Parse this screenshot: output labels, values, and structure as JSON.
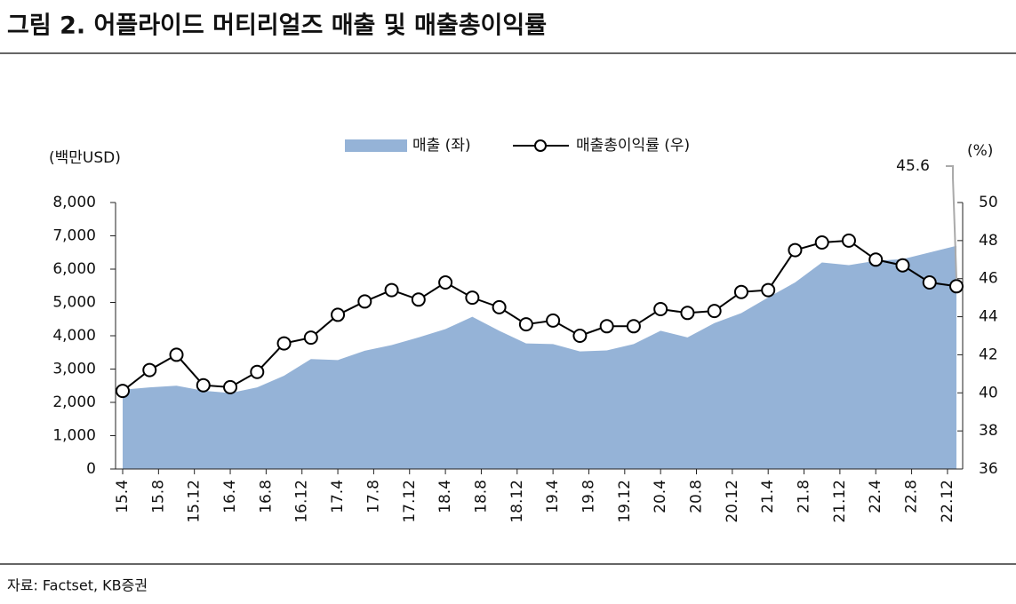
{
  "chart_data": {
    "type": "area_line",
    "title": "그림 2. 어플라이드 머티리얼즈 매출 및 매출총이익률",
    "source": "자료: Factset, KB증권",
    "y_label": "(백만USD)",
    "y2_label": "(%)",
    "annotation": "45.6",
    "x": [
      0,
      3,
      6,
      9,
      12,
      15,
      18,
      21,
      24,
      27,
      30,
      33,
      36,
      39,
      42,
      45,
      48,
      51,
      54,
      57,
      60,
      63,
      66,
      69,
      72,
      75,
      78,
      81,
      84,
      87,
      90,
      93
    ],
    "xlim": [
      0,
      93
    ],
    "xticks": [
      {
        "value": 0,
        "label": "15.4"
      },
      {
        "value": 4,
        "label": "15.8"
      },
      {
        "value": 8,
        "label": "15.12"
      },
      {
        "value": 12,
        "label": "16.4"
      },
      {
        "value": 16,
        "label": "16.8"
      },
      {
        "value": 20,
        "label": "16.12"
      },
      {
        "value": 24,
        "label": "17.4"
      },
      {
        "value": 28,
        "label": "17.8"
      },
      {
        "value": 32,
        "label": "17.12"
      },
      {
        "value": 36,
        "label": "18.4"
      },
      {
        "value": 40,
        "label": "18.8"
      },
      {
        "value": 44,
        "label": "18.12"
      },
      {
        "value": 48,
        "label": "19.4"
      },
      {
        "value": 52,
        "label": "19.8"
      },
      {
        "value": 56,
        "label": "19.12"
      },
      {
        "value": 60,
        "label": "20.4"
      },
      {
        "value": 64,
        "label": "20.8"
      },
      {
        "value": 68,
        "label": "20.12"
      },
      {
        "value": 72,
        "label": "21.4"
      },
      {
        "value": 76,
        "label": "21.8"
      },
      {
        "value": 80,
        "label": "21.12"
      },
      {
        "value": 84,
        "label": "22.4"
      },
      {
        "value": 88,
        "label": "22.8"
      },
      {
        "value": 92,
        "label": "22.12"
      }
    ],
    "ylim": [
      0,
      8000
    ],
    "yticks": [
      0,
      {
        "value": 1000,
        "label": "1,000"
      },
      {
        "value": 2000,
        "label": "2,000"
      },
      {
        "value": 3000,
        "label": "3,000"
      },
      {
        "value": 4000,
        "label": "4,000"
      },
      {
        "value": 5000,
        "label": "5,000"
      },
      {
        "value": 6000,
        "label": "6,000"
      },
      {
        "value": 7000,
        "label": "7,000"
      },
      {
        "value": 8000,
        "label": "8,000"
      }
    ],
    "y2lim": [
      36,
      50
    ],
    "y2ticks": [
      36,
      38,
      40,
      42,
      44,
      46,
      48,
      50
    ],
    "series": [
      {
        "name": "매출 (좌)",
        "color": "#95b3d7",
        "values": [
          2380,
          2450,
          2500,
          2350,
          2280,
          2450,
          2800,
          3300,
          3270,
          3550,
          3720,
          3950,
          4200,
          4570,
          4150,
          3770,
          3750,
          3530,
          3560,
          3750,
          4150,
          3950,
          4380,
          4680,
          5150,
          5600,
          6200,
          6120,
          6250,
          6300,
          6500,
          6700
        ]
      },
      {
        "name": "매출총이익률 (우)",
        "color": "#000000",
        "axis": "y2",
        "values": [
          40.1,
          41.2,
          42.0,
          40.4,
          40.3,
          41.1,
          42.6,
          42.9,
          44.1,
          44.8,
          45.4,
          44.9,
          45.8,
          45.0,
          44.5,
          43.6,
          43.8,
          43.0,
          43.5,
          43.5,
          44.4,
          44.2,
          44.3,
          45.3,
          45.4,
          47.5,
          47.9,
          48.0,
          47.0,
          46.7,
          45.8,
          45.6
        ]
      }
    ]
  }
}
